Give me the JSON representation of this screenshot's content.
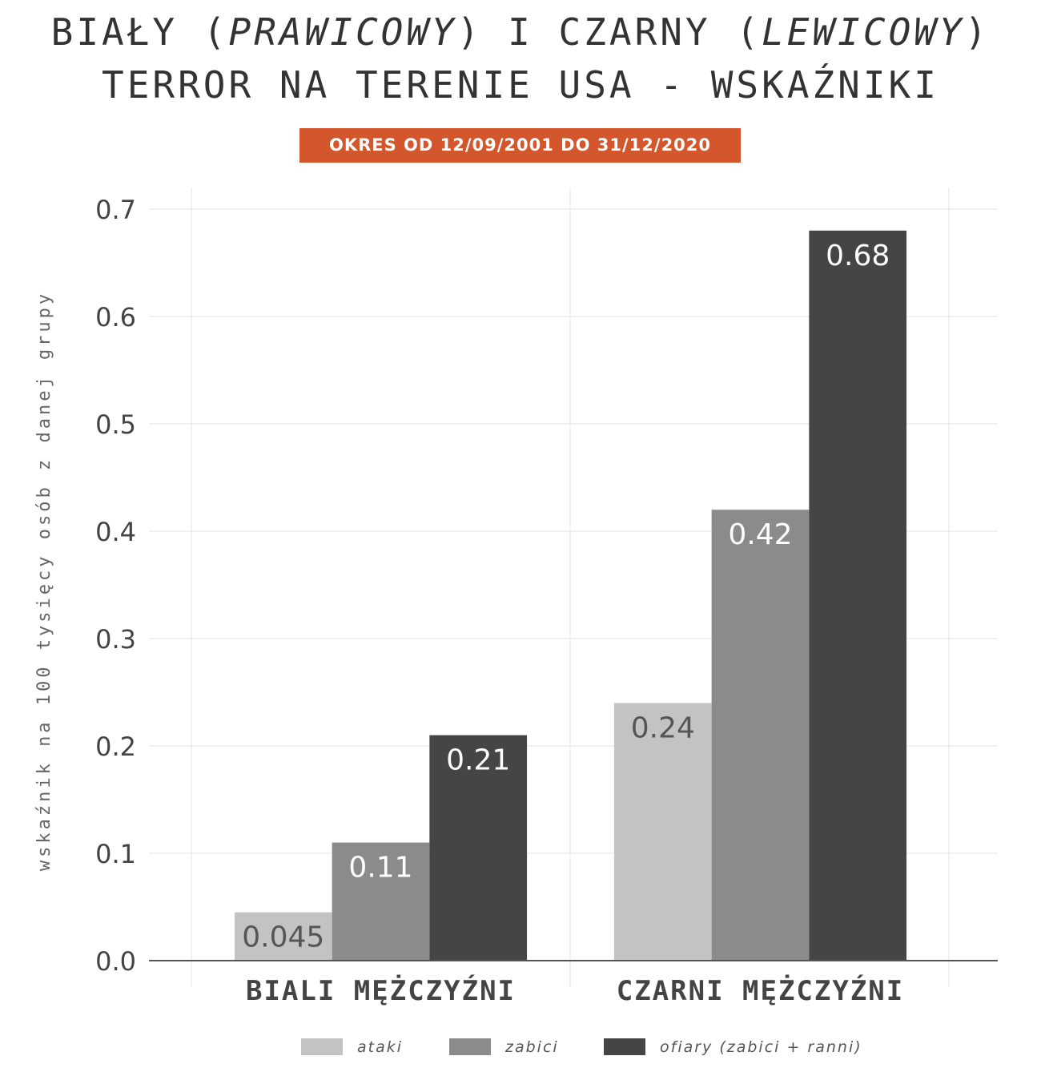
{
  "title_line1_parts": [
    "BIAŁY (",
    "PRAWICOWY",
    ") I CZARNY (",
    "LEWICOWY",
    ")"
  ],
  "title_line2": "TERROR NA TERENIE USA - WSKAŹNIKI",
  "subtitle_badge": "OKRES OD 12/09/2001 DO 31/12/2020",
  "colors": {
    "ataki": "#c3c3c3",
    "zabici": "#8b8b8b",
    "ofiary": "#454545",
    "badge": "#d4562c"
  },
  "chart_data": {
    "type": "bar",
    "title": "BIAŁY (PRAWICOWY) I CZARNY (LEWICOWY) TERROR NA TERENIE USA - WSKAŹNIKI",
    "subtitle": "OKRES OD 12/09/2001 DO 31/12/2020",
    "categories": [
      "BIALI MĘŻCZYŹNI",
      "CZARNI MĘŻCZYŹNI"
    ],
    "series": [
      {
        "name": "ataki",
        "values": [
          0.045,
          0.24
        ],
        "labels": [
          "0.045",
          "0.24"
        ]
      },
      {
        "name": "zabici",
        "values": [
          0.11,
          0.42
        ],
        "labels": [
          "0.11",
          "0.42"
        ]
      },
      {
        "name": "ofiary (zabici + ranni)",
        "values": [
          0.21,
          0.68
        ],
        "labels": [
          "0.21",
          "0.68"
        ]
      }
    ],
    "xlabel": "",
    "ylabel": "wskaźnik na 100 tysięcy osób z danej grupy",
    "ylim": [
      0,
      0.7
    ],
    "yticks": [
      "0.0",
      "0.1",
      "0.2",
      "0.3",
      "0.4",
      "0.5",
      "0.6",
      "0.7"
    ],
    "grid": true,
    "legend_position": "bottom"
  }
}
